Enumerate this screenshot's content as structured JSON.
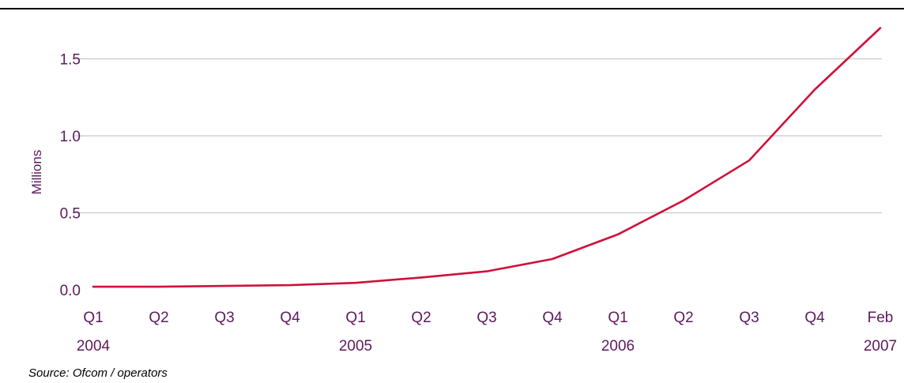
{
  "chart_data": {
    "type": "line",
    "title": "",
    "xlabel": "",
    "ylabel": "Millions",
    "ylim": [
      0,
      1.5
    ],
    "yticks": [
      "0.0",
      "0.5",
      "1.0",
      "1.5"
    ],
    "ytick_values": [
      0,
      0.5,
      1.0,
      1.5
    ],
    "grid": true,
    "categories": [
      {
        "label": "Q1",
        "year": "2004"
      },
      {
        "label": "Q2",
        "year": ""
      },
      {
        "label": "Q3",
        "year": ""
      },
      {
        "label": "Q4",
        "year": ""
      },
      {
        "label": "Q1",
        "year": "2005"
      },
      {
        "label": "Q2",
        "year": ""
      },
      {
        "label": "Q3",
        "year": ""
      },
      {
        "label": "Q4",
        "year": ""
      },
      {
        "label": "Q1",
        "year": "2006"
      },
      {
        "label": "Q2",
        "year": ""
      },
      {
        "label": "Q3",
        "year": ""
      },
      {
        "label": "Q4",
        "year": ""
      },
      {
        "label": "Feb",
        "year": "2007"
      }
    ],
    "series": [
      {
        "values": [
          0.02,
          0.02,
          0.025,
          0.03,
          0.045,
          0.08,
          0.12,
          0.2,
          0.36,
          0.58,
          0.84,
          1.3,
          1.7
        ],
        "color": "#d0103a"
      }
    ]
  },
  "colors": {
    "line": "#d0103a",
    "labels": "#5c1a5c",
    "grid": "#c8c8c8"
  },
  "source": "Source: Ofcom / operators"
}
